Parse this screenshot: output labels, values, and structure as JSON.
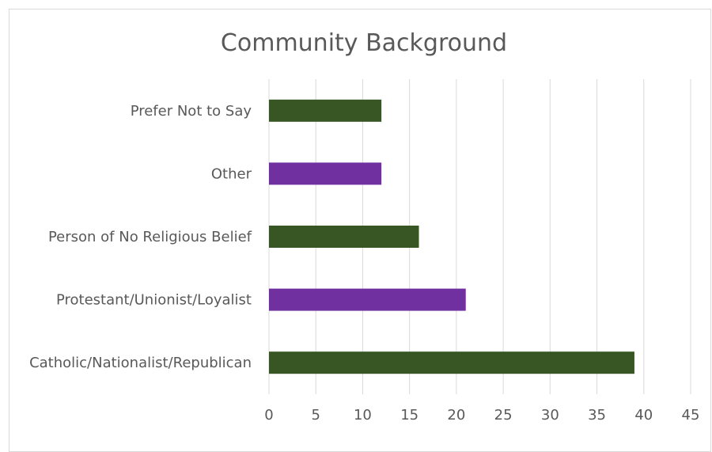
{
  "chart_data": {
    "type": "bar",
    "orientation": "horizontal",
    "title": "Community Background",
    "xlabel": "",
    "ylabel": "",
    "categories": [
      "Catholic/Nationalist/Republican",
      "Protestant/Unionist/Loyalist",
      "Person of No Religious Belief",
      "Other",
      "Prefer Not to Say"
    ],
    "values": [
      39,
      21,
      16,
      12,
      12
    ],
    "bar_colors": [
      "#375623",
      "#7030a0",
      "#375623",
      "#7030a0",
      "#375623"
    ],
    "xlim": [
      0,
      45
    ],
    "x_ticks": [
      0,
      5,
      10,
      15,
      20,
      25,
      30,
      35,
      40,
      45
    ],
    "grid": true,
    "legend": "none"
  }
}
